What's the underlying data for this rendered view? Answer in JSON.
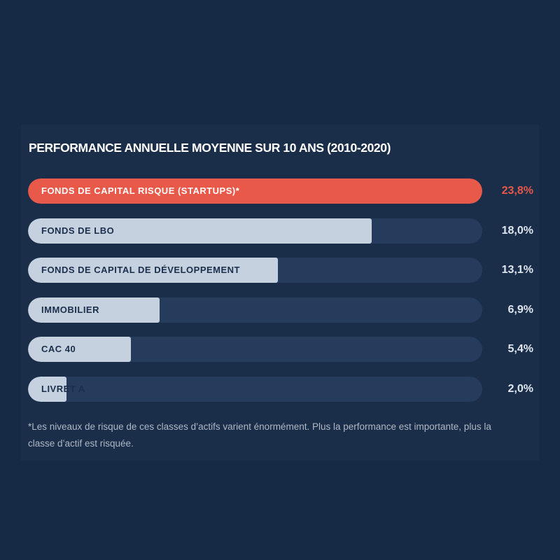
{
  "chart_data": {
    "type": "bar",
    "orientation": "horizontal",
    "title": "PERFORMANCE ANNUELLE MOYENNE SUR 10 ANS (2010-2020)",
    "categories": [
      "FONDS DE CAPITAL RISQUE (STARTUPS)*",
      "FONDS DE LBO",
      "FONDS DE CAPITAL DE DÉVELOPPEMENT",
      "IMMOBILIER",
      "CAC 40",
      "LIVRET A"
    ],
    "values": [
      23.8,
      18.0,
      13.1,
      6.9,
      5.4,
      2.0
    ],
    "value_labels": [
      "23,8%",
      "18,0%",
      "13,1%",
      "6,9%",
      "5,4%",
      "2,0%"
    ],
    "xlim": [
      0,
      23.8
    ],
    "grid": false,
    "highlight_index": 0,
    "colors": {
      "background": "#172a45",
      "track": "#253c5d",
      "bar": "#c5d1de",
      "highlight": "#e8594a"
    },
    "footnote": "*Les niveaux de risque de ces classes d’actifs varient énormément. Plus la performance est importante, plus la classe d’actif est risquée."
  }
}
